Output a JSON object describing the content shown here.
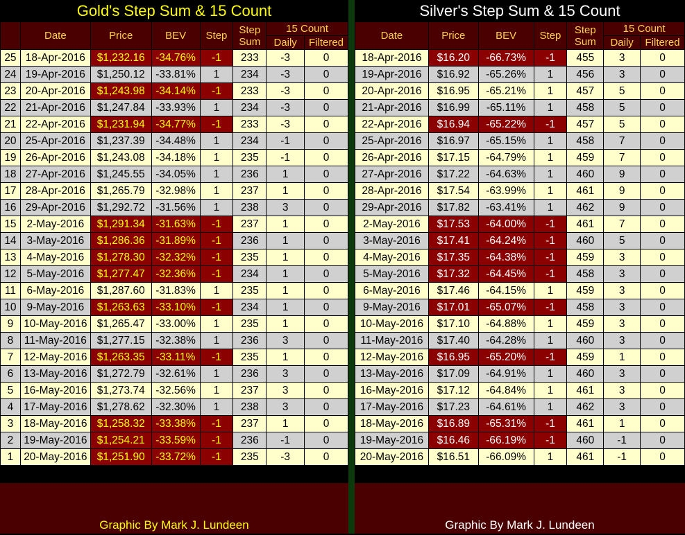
{
  "gold": {
    "title": "Gold's Step Sum & 15 Count",
    "footer": "Graphic By Mark J. Lundeen",
    "headers": {
      "date": "Date",
      "price": "Price",
      "bev": "BEV",
      "step": "Step",
      "step_sum": "Step Sum",
      "fifteen_count": "15 Count",
      "daily": "Daily",
      "filtered": "Filtered"
    },
    "rows": [
      [
        "25",
        "18-Apr-2016",
        "$1,232.16",
        "-34.76%",
        "-1",
        "233",
        "-3",
        "0"
      ],
      [
        "24",
        "19-Apr-2016",
        "$1,250.12",
        "-33.81%",
        "1",
        "234",
        "-3",
        "0"
      ],
      [
        "23",
        "20-Apr-2016",
        "$1,243.98",
        "-34.14%",
        "-1",
        "233",
        "-3",
        "0"
      ],
      [
        "22",
        "21-Apr-2016",
        "$1,247.84",
        "-33.93%",
        "1",
        "234",
        "-3",
        "0"
      ],
      [
        "21",
        "22-Apr-2016",
        "$1,231.94",
        "-34.77%",
        "-1",
        "233",
        "-3",
        "0"
      ],
      [
        "20",
        "25-Apr-2016",
        "$1,237.39",
        "-34.48%",
        "1",
        "234",
        "-1",
        "0"
      ],
      [
        "19",
        "26-Apr-2016",
        "$1,243.08",
        "-34.18%",
        "1",
        "235",
        "-1",
        "0"
      ],
      [
        "18",
        "27-Apr-2016",
        "$1,245.55",
        "-34.05%",
        "1",
        "236",
        "1",
        "0"
      ],
      [
        "17",
        "28-Apr-2016",
        "$1,265.79",
        "-32.98%",
        "1",
        "237",
        "1",
        "0"
      ],
      [
        "16",
        "29-Apr-2016",
        "$1,292.72",
        "-31.56%",
        "1",
        "238",
        "3",
        "0"
      ],
      [
        "15",
        "2-May-2016",
        "$1,291.34",
        "-31.63%",
        "-1",
        "237",
        "1",
        "0"
      ],
      [
        "14",
        "3-May-2016",
        "$1,286.36",
        "-31.89%",
        "-1",
        "236",
        "1",
        "0"
      ],
      [
        "13",
        "4-May-2016",
        "$1,278.30",
        "-32.32%",
        "-1",
        "235",
        "1",
        "0"
      ],
      [
        "12",
        "5-May-2016",
        "$1,277.47",
        "-32.36%",
        "-1",
        "234",
        "1",
        "0"
      ],
      [
        "11",
        "6-May-2016",
        "$1,287.60",
        "-31.83%",
        "1",
        "235",
        "1",
        "0"
      ],
      [
        "10",
        "9-May-2016",
        "$1,263.63",
        "-33.10%",
        "-1",
        "234",
        "1",
        "0"
      ],
      [
        "9",
        "10-May-2016",
        "$1,265.47",
        "-33.00%",
        "1",
        "235",
        "1",
        "0"
      ],
      [
        "8",
        "11-May-2016",
        "$1,277.15",
        "-32.38%",
        "1",
        "236",
        "3",
        "0"
      ],
      [
        "7",
        "12-May-2016",
        "$1,263.35",
        "-33.11%",
        "-1",
        "235",
        "1",
        "0"
      ],
      [
        "6",
        "13-May-2016",
        "$1,272.79",
        "-32.61%",
        "1",
        "236",
        "3",
        "0"
      ],
      [
        "5",
        "16-May-2016",
        "$1,273.74",
        "-32.56%",
        "1",
        "237",
        "3",
        "0"
      ],
      [
        "4",
        "17-May-2016",
        "$1,278.62",
        "-32.30%",
        "1",
        "238",
        "3",
        "0"
      ],
      [
        "3",
        "18-May-2016",
        "$1,258.32",
        "-33.38%",
        "-1",
        "237",
        "1",
        "0"
      ],
      [
        "2",
        "19-May-2016",
        "$1,254.21",
        "-33.59%",
        "-1",
        "236",
        "-1",
        "0"
      ],
      [
        "1",
        "20-May-2016",
        "$1,251.90",
        "-33.72%",
        "-1",
        "235",
        "-3",
        "0"
      ]
    ]
  },
  "silver": {
    "title": "Silver's Step Sum & 15 Count",
    "footer": "Graphic By Mark J. Lundeen",
    "headers": {
      "date": "Date",
      "price": "Price",
      "bev": "BEV",
      "step": "Step",
      "step_sum": "Step Sum",
      "fifteen_count": "15 Count",
      "daily": "Daily",
      "filtered": "Filtered"
    },
    "rows": [
      [
        "18-Apr-2016",
        "$16.20",
        "-66.73%",
        "-1",
        "455",
        "3",
        "0"
      ],
      [
        "19-Apr-2016",
        "$16.92",
        "-65.26%",
        "1",
        "456",
        "3",
        "0"
      ],
      [
        "20-Apr-2016",
        "$16.95",
        "-65.21%",
        "1",
        "457",
        "5",
        "0"
      ],
      [
        "21-Apr-2016",
        "$16.99",
        "-65.11%",
        "1",
        "458",
        "5",
        "0"
      ],
      [
        "22-Apr-2016",
        "$16.94",
        "-65.22%",
        "-1",
        "457",
        "5",
        "0"
      ],
      [
        "25-Apr-2016",
        "$16.97",
        "-65.15%",
        "1",
        "458",
        "7",
        "0"
      ],
      [
        "26-Apr-2016",
        "$17.15",
        "-64.79%",
        "1",
        "459",
        "7",
        "0"
      ],
      [
        "27-Apr-2016",
        "$17.22",
        "-64.63%",
        "1",
        "460",
        "9",
        "0"
      ],
      [
        "28-Apr-2016",
        "$17.54",
        "-63.99%",
        "1",
        "461",
        "9",
        "0"
      ],
      [
        "29-Apr-2016",
        "$17.82",
        "-63.41%",
        "1",
        "462",
        "9",
        "0"
      ],
      [
        "2-May-2016",
        "$17.53",
        "-64.00%",
        "-1",
        "461",
        "7",
        "0"
      ],
      [
        "3-May-2016",
        "$17.41",
        "-64.24%",
        "-1",
        "460",
        "5",
        "0"
      ],
      [
        "4-May-2016",
        "$17.35",
        "-64.38%",
        "-1",
        "459",
        "3",
        "0"
      ],
      [
        "5-May-2016",
        "$17.32",
        "-64.45%",
        "-1",
        "458",
        "3",
        "0"
      ],
      [
        "6-May-2016",
        "$17.46",
        "-64.15%",
        "1",
        "459",
        "3",
        "0"
      ],
      [
        "9-May-2016",
        "$17.01",
        "-65.07%",
        "-1",
        "458",
        "3",
        "0"
      ],
      [
        "10-May-2016",
        "$17.10",
        "-64.88%",
        "1",
        "459",
        "3",
        "0"
      ],
      [
        "11-May-2016",
        "$17.40",
        "-64.28%",
        "1",
        "460",
        "3",
        "0"
      ],
      [
        "12-May-2016",
        "$16.95",
        "-65.20%",
        "-1",
        "459",
        "1",
        "0"
      ],
      [
        "13-May-2016",
        "$17.09",
        "-64.91%",
        "1",
        "460",
        "3",
        "0"
      ],
      [
        "16-May-2016",
        "$17.12",
        "-64.84%",
        "1",
        "461",
        "3",
        "0"
      ],
      [
        "17-May-2016",
        "$17.23",
        "-64.61%",
        "1",
        "462",
        "3",
        "0"
      ],
      [
        "18-May-2016",
        "$16.89",
        "-65.31%",
        "-1",
        "461",
        "1",
        "0"
      ],
      [
        "19-May-2016",
        "$16.46",
        "-66.19%",
        "-1",
        "460",
        "-1",
        "0"
      ],
      [
        "20-May-2016",
        "$16.51",
        "-66.09%",
        "1",
        "461",
        "-1",
        "0"
      ]
    ]
  },
  "colors": {
    "background": "#000000",
    "header_bg": "#4a0000",
    "header_text": "#ffd24d",
    "row_odd": "#ffffcc",
    "row_even": "#d0d0d0",
    "down_day_bg": "#8b0000",
    "gold_title": "#ffff00",
    "silver_title": "#ffffff",
    "divider": "#0d3a0d"
  }
}
